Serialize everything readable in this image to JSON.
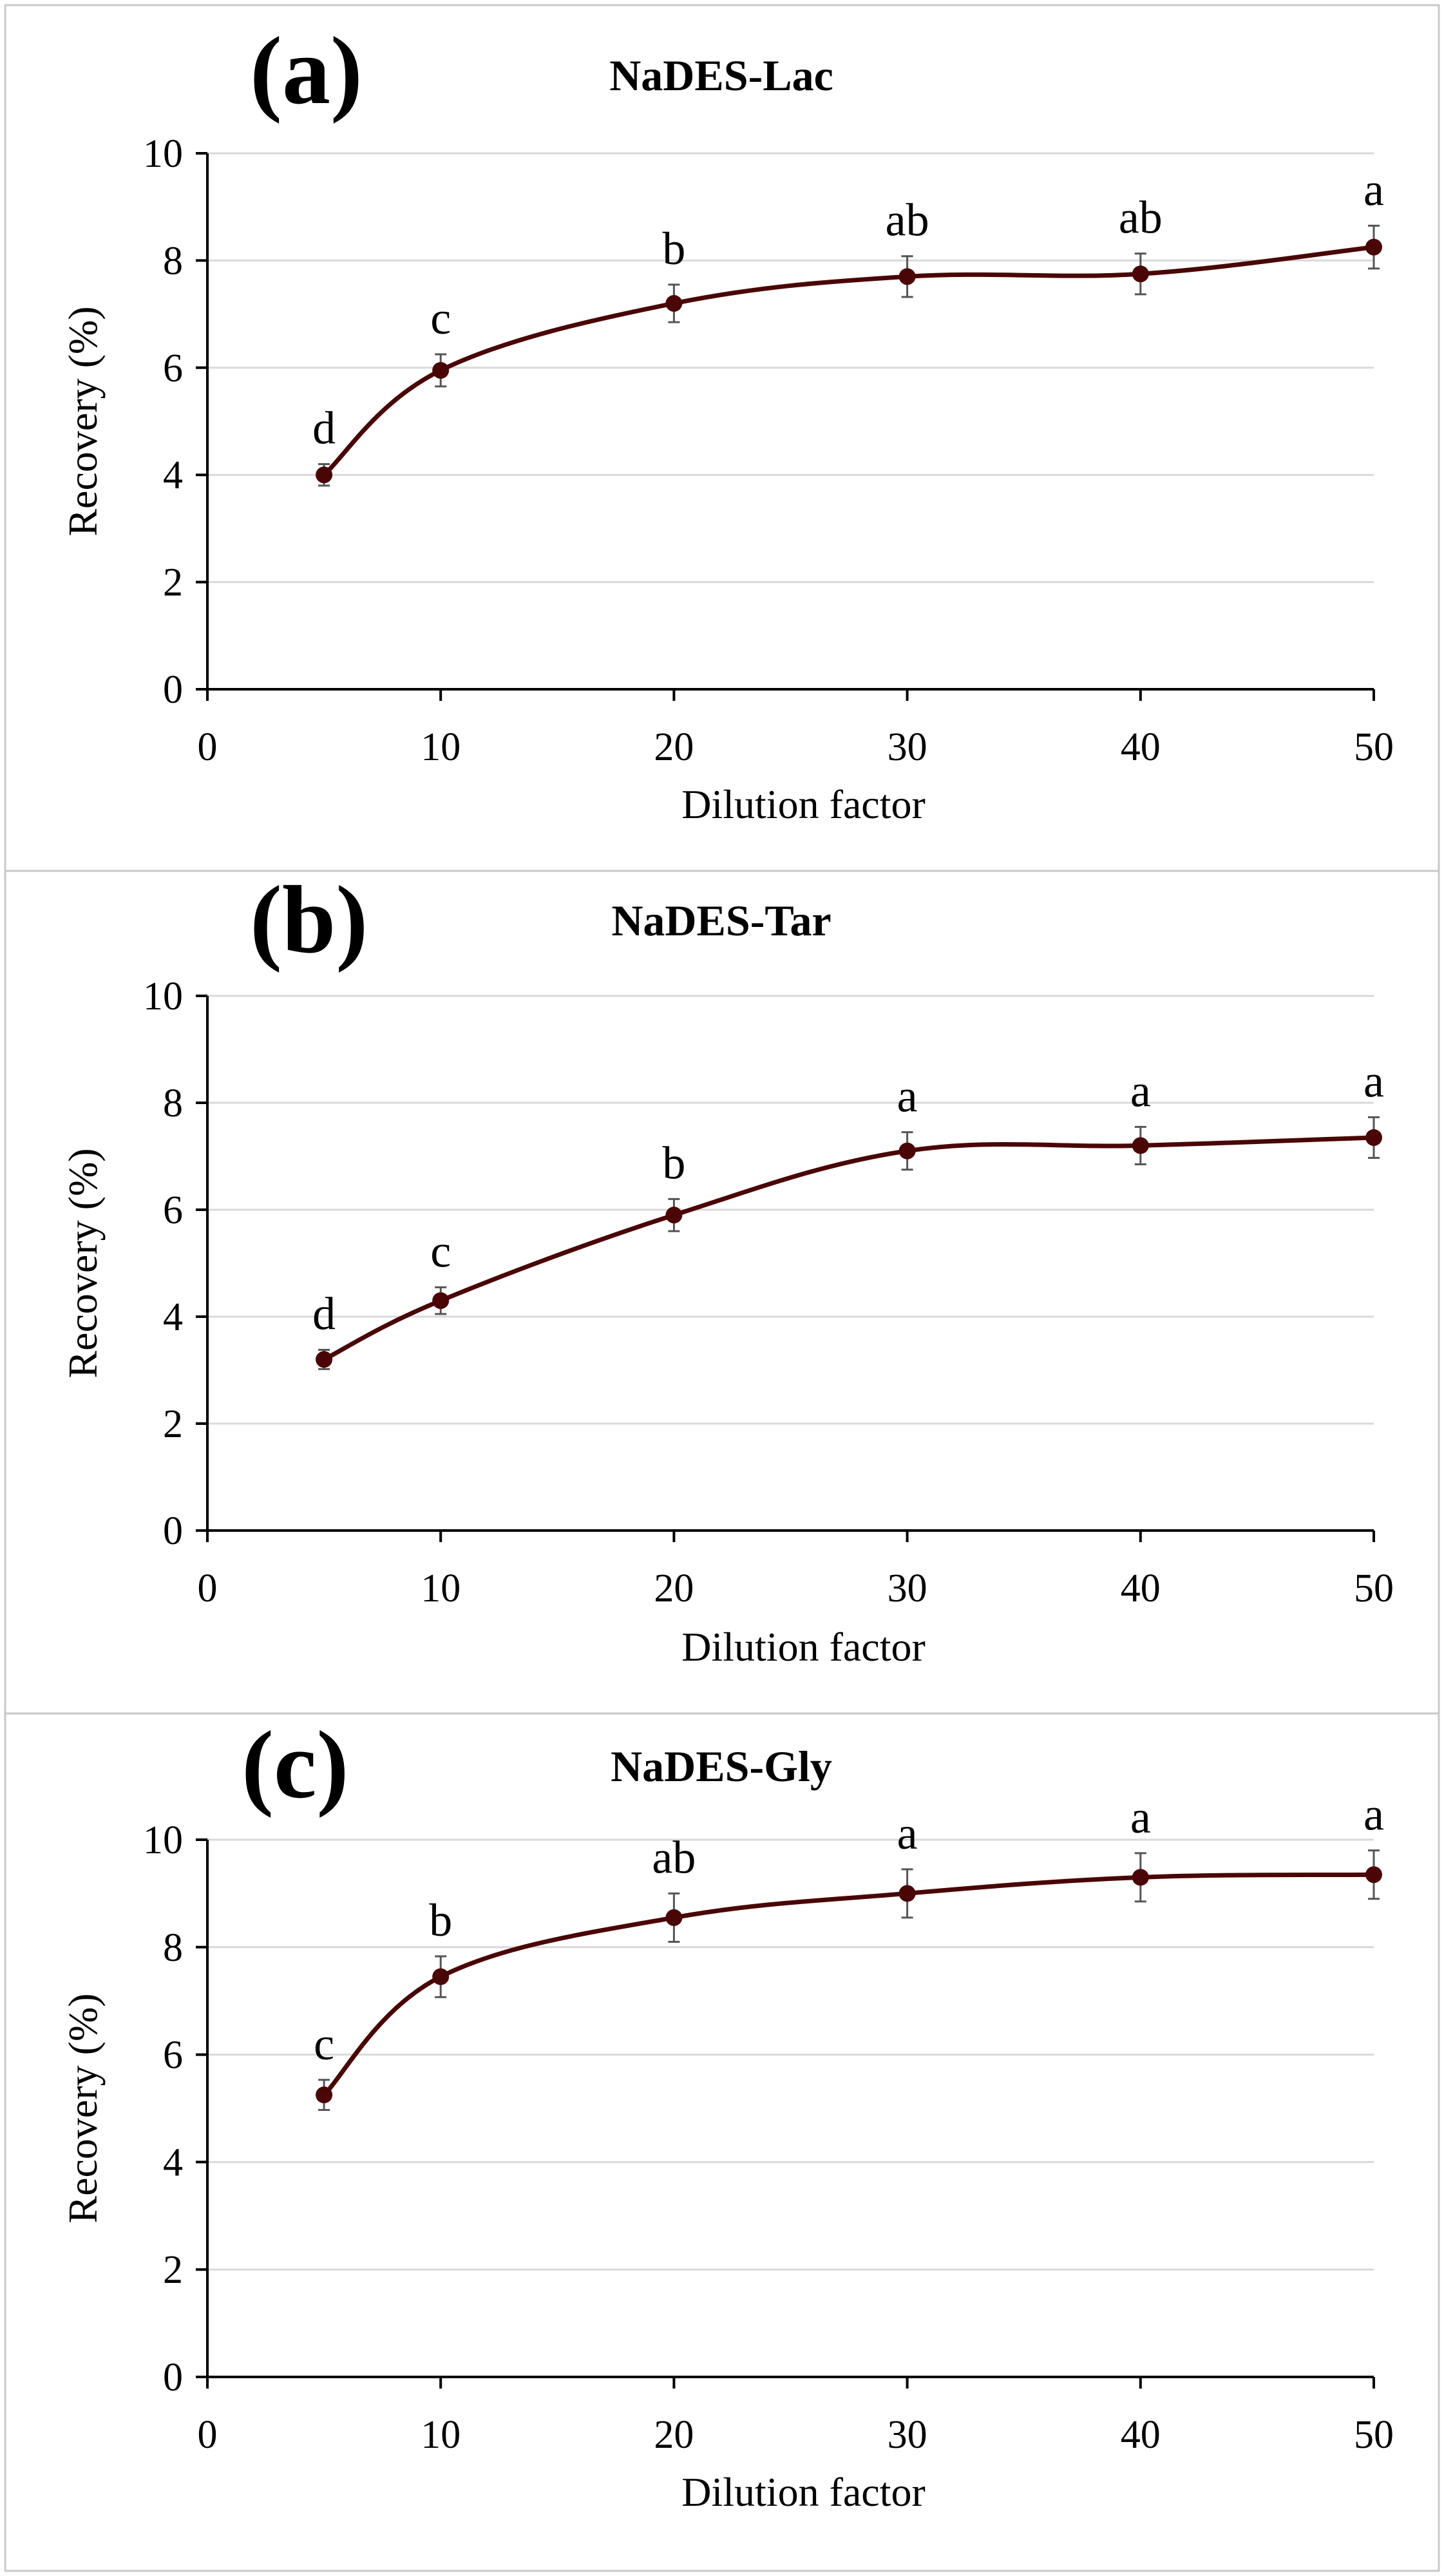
{
  "figure": {
    "line_color": "#4a0606",
    "frame_color": "#c8c8c8",
    "grid_color": "#d9d9d9",
    "axis_color": "#000000"
  },
  "chart_data": [
    {
      "type": "line",
      "panel_label": "(a)",
      "title": "NaDES-Lac",
      "xlabel": "Dilution factor",
      "ylabel": "Recovery (%)",
      "xlim": [
        0,
        50
      ],
      "ylim": [
        0,
        10
      ],
      "xticks": [
        0,
        10,
        20,
        30,
        40,
        50
      ],
      "yticks": [
        0,
        2,
        4,
        6,
        8,
        10
      ],
      "grid": true,
      "smooth": true,
      "series": [
        {
          "name": "NaDES-Lac",
          "x": [
            5,
            10,
            20,
            30,
            40,
            50
          ],
          "y": [
            4.0,
            5.95,
            7.2,
            7.7,
            7.75,
            8.25
          ],
          "error": [
            0.2,
            0.3,
            0.35,
            0.38,
            0.38,
            0.4
          ],
          "significance": [
            "d",
            "c",
            "b",
            "ab",
            "ab",
            "a"
          ]
        }
      ]
    },
    {
      "type": "line",
      "panel_label": "(b)",
      "title": "NaDES-Tar",
      "xlabel": "Dilution factor",
      "ylabel": "Recovery (%)",
      "xlim": [
        0,
        50
      ],
      "ylim": [
        0,
        10
      ],
      "xticks": [
        0,
        10,
        20,
        30,
        40,
        50
      ],
      "yticks": [
        0,
        2,
        4,
        6,
        8,
        10
      ],
      "grid": true,
      "smooth": true,
      "series": [
        {
          "name": "NaDES-Tar",
          "x": [
            5,
            10,
            20,
            30,
            40,
            50
          ],
          "y": [
            3.2,
            4.3,
            5.9,
            7.1,
            7.2,
            7.35
          ],
          "error": [
            0.18,
            0.25,
            0.3,
            0.35,
            0.35,
            0.38
          ],
          "significance": [
            "d",
            "c",
            "b",
            "a",
            "a",
            "a"
          ]
        }
      ]
    },
    {
      "type": "line",
      "panel_label": "(c)",
      "title": "NaDES-Gly",
      "xlabel": "Dilution factor",
      "ylabel": "Recovery (%)",
      "xlim": [
        0,
        50
      ],
      "ylim": [
        0,
        10
      ],
      "xticks": [
        0,
        10,
        20,
        30,
        40,
        50
      ],
      "yticks": [
        0,
        2,
        4,
        6,
        8,
        10
      ],
      "grid": true,
      "smooth": true,
      "series": [
        {
          "name": "NaDES-Gly",
          "x": [
            5,
            10,
            20,
            30,
            40,
            50
          ],
          "y": [
            5.25,
            7.45,
            8.55,
            9.0,
            9.3,
            9.35
          ],
          "error": [
            0.28,
            0.38,
            0.45,
            0.45,
            0.45,
            0.45
          ],
          "significance": [
            "c",
            "b",
            "ab",
            "a",
            "a",
            "a"
          ]
        }
      ]
    }
  ]
}
